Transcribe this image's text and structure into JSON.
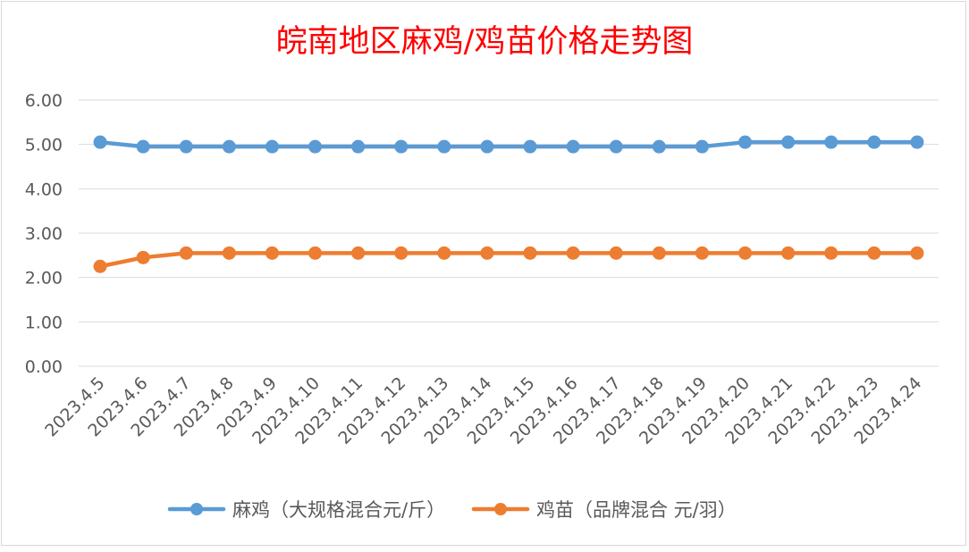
{
  "chart_data": {
    "type": "line",
    "title": "皖南地区麻鸡/鸡苗价格走势图",
    "title_color": "#ff0000",
    "xlabel": "",
    "ylabel": "",
    "ylim": [
      0,
      6
    ],
    "yticks": [
      "0.00",
      "1.00",
      "2.00",
      "3.00",
      "4.00",
      "5.00",
      "6.00"
    ],
    "grid": true,
    "legend_position": "bottom",
    "categories": [
      "2023.4.5",
      "2023.4.6",
      "2023.4.7",
      "2023.4.8",
      "2023.4.9",
      "2023.4.10",
      "2023.4.11",
      "2023.4.12",
      "2023.4.13",
      "2023.4.14",
      "2023.4.15",
      "2023.4.16",
      "2023.4.17",
      "2023.4.18",
      "2023.4.19",
      "2023.4.20",
      "2023.4.21",
      "2023.4.22",
      "2023.4.23",
      "2023.4.24"
    ],
    "series": [
      {
        "name": "麻鸡（大规格混合元/斤）",
        "color": "#5b9bd5",
        "values": [
          5.05,
          4.95,
          4.95,
          4.95,
          4.95,
          4.95,
          4.95,
          4.95,
          4.95,
          4.95,
          4.95,
          4.95,
          4.95,
          4.95,
          4.95,
          5.05,
          5.05,
          5.05,
          5.05,
          5.05
        ]
      },
      {
        "name": "鸡苗（品牌混合 元/羽）",
        "color": "#ed7d31",
        "values": [
          2.25,
          2.45,
          2.55,
          2.55,
          2.55,
          2.55,
          2.55,
          2.55,
          2.55,
          2.55,
          2.55,
          2.55,
          2.55,
          2.55,
          2.55,
          2.55,
          2.55,
          2.55,
          2.55,
          2.55
        ]
      }
    ]
  }
}
